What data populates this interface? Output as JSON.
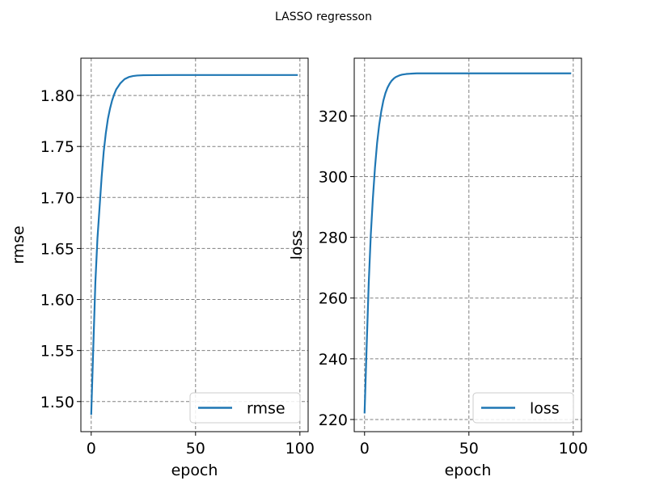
{
  "figure": {
    "title": "LASSO regresson"
  },
  "chart_data": [
    {
      "type": "line",
      "xlabel": "epoch",
      "ylabel": "rmse",
      "xlim": [
        -4.95,
        103.95
      ],
      "ylim": [
        1.4705,
        1.8365
      ],
      "xticks": [
        0,
        50,
        100
      ],
      "yticks": [
        1.5,
        1.55,
        1.6,
        1.65,
        1.7,
        1.75,
        1.8
      ],
      "ytick_labels": [
        "1.50",
        "1.55",
        "1.60",
        "1.65",
        "1.70",
        "1.75",
        "1.80"
      ],
      "grid": true,
      "legend_position": "lower-right",
      "color": "#1f77b4",
      "series": [
        {
          "name": "rmse",
          "x": [
            0,
            1,
            2,
            3,
            4,
            5,
            6,
            7,
            8,
            9,
            10,
            11,
            12,
            13,
            14,
            15,
            16,
            17,
            18,
            20,
            22,
            25,
            30,
            40,
            50,
            60,
            70,
            80,
            90,
            99
          ],
          "y": [
            1.487,
            1.553,
            1.617,
            1.66,
            1.69,
            1.72,
            1.745,
            1.763,
            1.777,
            1.787,
            1.795,
            1.801,
            1.806,
            1.809,
            1.812,
            1.814,
            1.816,
            1.817,
            1.818,
            1.819,
            1.8195,
            1.8198,
            1.8199,
            1.82,
            1.82,
            1.82,
            1.82,
            1.82,
            1.82,
            1.82
          ]
        }
      ]
    },
    {
      "type": "line",
      "xlabel": "epoch",
      "ylabel": "loss",
      "xlim": [
        -4.95,
        103.95
      ],
      "ylim": [
        216,
        339
      ],
      "xticks": [
        0,
        50,
        100
      ],
      "yticks": [
        220,
        240,
        260,
        280,
        300,
        320
      ],
      "ytick_labels": [
        "220",
        "240",
        "260",
        "280",
        "300",
        "320"
      ],
      "grid": true,
      "legend_position": "lower-right",
      "color": "#1f77b4",
      "series": [
        {
          "name": "loss",
          "x": [
            0,
            1,
            2,
            3,
            4,
            5,
            6,
            7,
            8,
            9,
            10,
            11,
            12,
            13,
            14,
            15,
            16,
            17,
            18,
            20,
            22,
            25,
            30,
            40,
            50,
            60,
            70,
            80,
            90,
            99
          ],
          "y": [
            222,
            244,
            265,
            281,
            293,
            303,
            311,
            317,
            321.5,
            325,
            327.5,
            329.3,
            330.6,
            331.6,
            332.3,
            332.8,
            333.1,
            333.4,
            333.6,
            333.8,
            333.9,
            334,
            334,
            334,
            334,
            334,
            334,
            334,
            334,
            334
          ]
        }
      ]
    }
  ]
}
